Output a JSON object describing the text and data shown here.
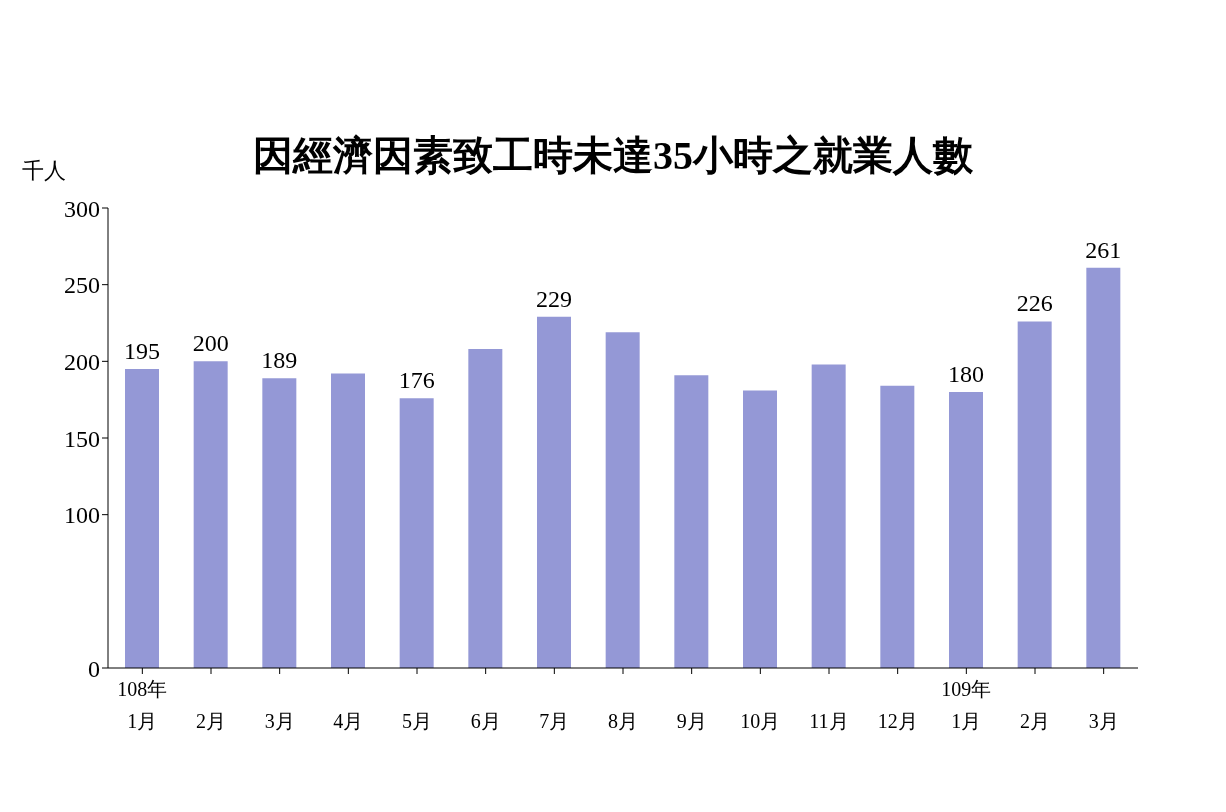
{
  "chart_data": {
    "type": "bar",
    "title": "因經濟因素致工時未達35小時之就業人數",
    "ylabel": "千人",
    "categories": [
      "108年\n1月",
      "2月",
      "3月",
      "4月",
      "5月",
      "6月",
      "7月",
      "8月",
      "9月",
      "10月",
      "11月",
      "12月",
      "109年\n1月",
      "2月",
      "3月"
    ],
    "values": [
      195,
      200,
      189,
      192,
      176,
      208,
      229,
      219,
      191,
      181,
      198,
      184,
      180,
      226,
      261
    ],
    "value_labels": [
      "195",
      "200",
      "189",
      null,
      "176",
      null,
      "229",
      null,
      null,
      null,
      null,
      null,
      "180",
      "226",
      "261"
    ],
    "color": "#9498d6",
    "ylim": [
      0,
      300
    ],
    "yticks": [
      0,
      100,
      150,
      200,
      250,
      300
    ],
    "grid": false
  }
}
